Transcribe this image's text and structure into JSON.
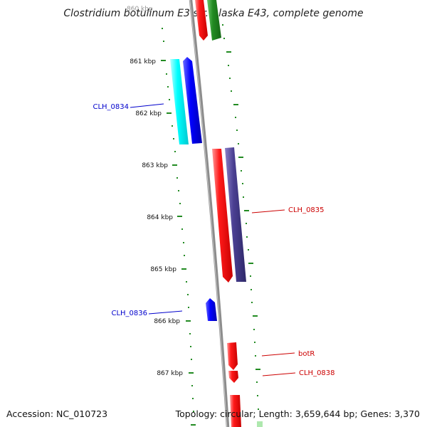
{
  "map": {
    "title": "Clostridium botulinum E3 str. Alaska E43, complete genome",
    "top_partial_label": "860 kbp",
    "tick_labels": [
      "861 kbp",
      "862 kbp",
      "863 kbp",
      "864 kbp",
      "865 kbp",
      "866 kbp",
      "867 kbp"
    ],
    "gene_labels": {
      "clh_0834": "CLH_0834",
      "clh_0835": "CLH_0835",
      "clh_0836": "CLH_0836",
      "botr": "botR",
      "clh_0838": "CLH_0838"
    },
    "footer": {
      "accession": "Accession: NC_010723",
      "summary": "Topology: circular; Length: 3,659,644 bp; Genes: 3,370"
    },
    "colors": {
      "backbone": "#808080",
      "tick_marks": "#228b22",
      "gene_red": "#ff0000",
      "gene_blue": "#0000ff",
      "gene_cyan": "#00ffff",
      "gene_purple": "#483d8b",
      "gene_green": "#228b22",
      "label_blue": "#0000cc",
      "label_red": "#cc0000"
    }
  }
}
